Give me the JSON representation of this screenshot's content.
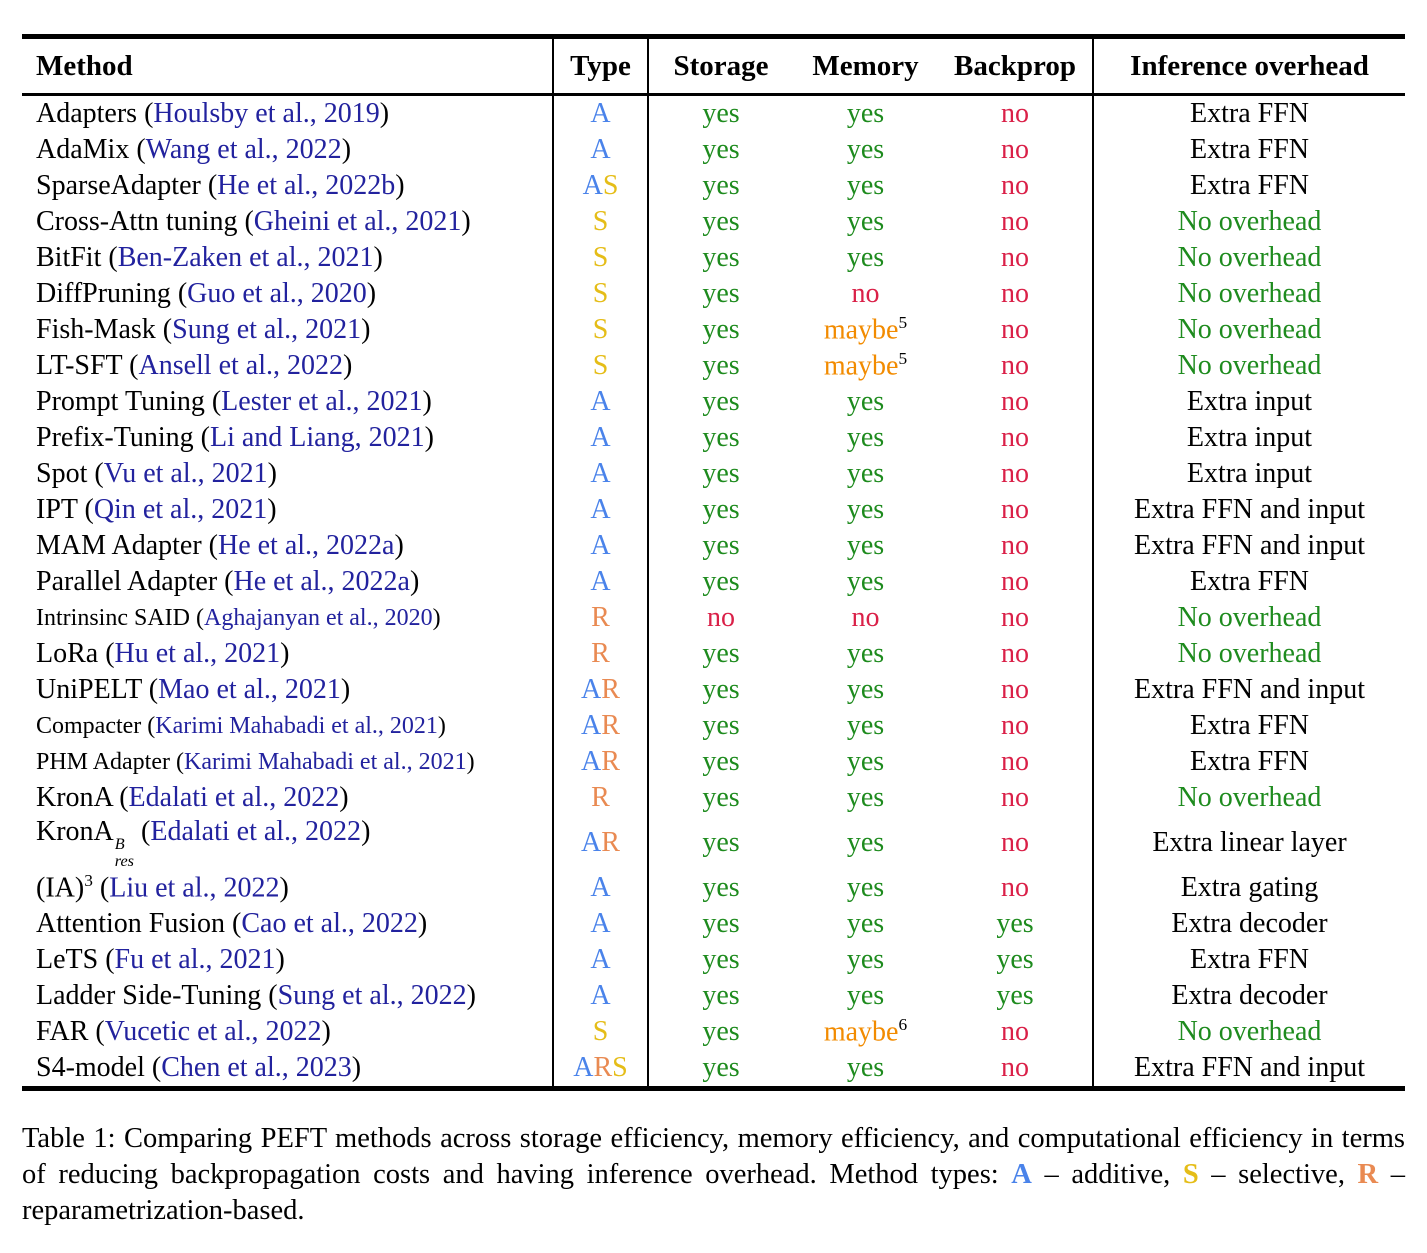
{
  "palette": {
    "citation": "#22229e",
    "type_A": "#4a83ea",
    "type_S": "#e5bd18",
    "type_R": "#e98a52",
    "yes": "#1e8b1e",
    "no": "#da2048",
    "maybe": "#f28b00",
    "overhead_green": "#1e8b1e",
    "text": "#000000"
  },
  "table": {
    "columns": [
      {
        "key": "method",
        "label": "Method"
      },
      {
        "key": "type",
        "label": "Type"
      },
      {
        "key": "storage",
        "label": "Storage"
      },
      {
        "key": "memory",
        "label": "Memory"
      },
      {
        "key": "backprop",
        "label": "Backprop"
      },
      {
        "key": "overhead",
        "label": "Inference overhead"
      }
    ],
    "rows": [
      {
        "method": [
          {
            "t": "text",
            "v": "Adapters ("
          },
          {
            "t": "cite",
            "v": "Houlsby et al., 2019"
          },
          {
            "t": "text",
            "v": ")"
          }
        ],
        "type": [
          "A"
        ],
        "storage": {
          "value": "yes"
        },
        "memory": {
          "value": "yes"
        },
        "backprop": {
          "value": "no"
        },
        "overhead": {
          "text": "Extra FFN",
          "style": "plain"
        },
        "small": false
      },
      {
        "method": [
          {
            "t": "text",
            "v": "AdaMix ("
          },
          {
            "t": "cite",
            "v": "Wang et al., 2022"
          },
          {
            "t": "text",
            "v": ")"
          }
        ],
        "type": [
          "A"
        ],
        "storage": {
          "value": "yes"
        },
        "memory": {
          "value": "yes"
        },
        "backprop": {
          "value": "no"
        },
        "overhead": {
          "text": "Extra FFN",
          "style": "plain"
        },
        "small": false
      },
      {
        "method": [
          {
            "t": "text",
            "v": "SparseAdapter ("
          },
          {
            "t": "cite",
            "v": "He et al., 2022b"
          },
          {
            "t": "text",
            "v": ")"
          }
        ],
        "type": [
          "A",
          "S"
        ],
        "storage": {
          "value": "yes"
        },
        "memory": {
          "value": "yes"
        },
        "backprop": {
          "value": "no"
        },
        "overhead": {
          "text": "Extra FFN",
          "style": "plain"
        },
        "small": false
      },
      {
        "method": [
          {
            "t": "text",
            "v": "Cross-Attn tuning ("
          },
          {
            "t": "cite",
            "v": "Gheini et al., 2021"
          },
          {
            "t": "text",
            "v": ")"
          }
        ],
        "type": [
          "S"
        ],
        "storage": {
          "value": "yes"
        },
        "memory": {
          "value": "yes"
        },
        "backprop": {
          "value": "no"
        },
        "overhead": {
          "text": "No overhead",
          "style": "green"
        },
        "small": false
      },
      {
        "method": [
          {
            "t": "text",
            "v": "BitFit ("
          },
          {
            "t": "cite",
            "v": "Ben-Zaken et al., 2021"
          },
          {
            "t": "text",
            "v": ")"
          }
        ],
        "type": [
          "S"
        ],
        "storage": {
          "value": "yes"
        },
        "memory": {
          "value": "yes"
        },
        "backprop": {
          "value": "no"
        },
        "overhead": {
          "text": "No overhead",
          "style": "green"
        },
        "small": false
      },
      {
        "method": [
          {
            "t": "text",
            "v": "DiffPruning ("
          },
          {
            "t": "cite",
            "v": "Guo et al., 2020"
          },
          {
            "t": "text",
            "v": ")"
          }
        ],
        "type": [
          "S"
        ],
        "storage": {
          "value": "yes"
        },
        "memory": {
          "value": "no"
        },
        "backprop": {
          "value": "no"
        },
        "overhead": {
          "text": "No overhead",
          "style": "green"
        },
        "small": false
      },
      {
        "method": [
          {
            "t": "text",
            "v": "Fish-Mask ("
          },
          {
            "t": "cite",
            "v": "Sung et al., 2021"
          },
          {
            "t": "text",
            "v": ")"
          }
        ],
        "type": [
          "S"
        ],
        "storage": {
          "value": "yes"
        },
        "memory": {
          "value": "maybe",
          "sup": "5"
        },
        "backprop": {
          "value": "no"
        },
        "overhead": {
          "text": "No overhead",
          "style": "green"
        },
        "small": false
      },
      {
        "method": [
          {
            "t": "text",
            "v": "LT-SFT ("
          },
          {
            "t": "cite",
            "v": "Ansell et al., 2022"
          },
          {
            "t": "text",
            "v": ")"
          }
        ],
        "type": [
          "S"
        ],
        "storage": {
          "value": "yes"
        },
        "memory": {
          "value": "maybe",
          "sup": "5"
        },
        "backprop": {
          "value": "no"
        },
        "overhead": {
          "text": "No overhead",
          "style": "green"
        },
        "small": false
      },
      {
        "method": [
          {
            "t": "text",
            "v": "Prompt Tuning ("
          },
          {
            "t": "cite",
            "v": "Lester et al., 2021"
          },
          {
            "t": "text",
            "v": ")"
          }
        ],
        "type": [
          "A"
        ],
        "storage": {
          "value": "yes"
        },
        "memory": {
          "value": "yes"
        },
        "backprop": {
          "value": "no"
        },
        "overhead": {
          "text": "Extra input",
          "style": "plain"
        },
        "small": false
      },
      {
        "method": [
          {
            "t": "text",
            "v": "Prefix-Tuning ("
          },
          {
            "t": "cite",
            "v": "Li and Liang, 2021"
          },
          {
            "t": "text",
            "v": ")"
          }
        ],
        "type": [
          "A"
        ],
        "storage": {
          "value": "yes"
        },
        "memory": {
          "value": "yes"
        },
        "backprop": {
          "value": "no"
        },
        "overhead": {
          "text": "Extra input",
          "style": "plain"
        },
        "small": false
      },
      {
        "method": [
          {
            "t": "text",
            "v": "Spot ("
          },
          {
            "t": "cite",
            "v": "Vu et al., 2021"
          },
          {
            "t": "text",
            "v": ")"
          }
        ],
        "type": [
          "A"
        ],
        "storage": {
          "value": "yes"
        },
        "memory": {
          "value": "yes"
        },
        "backprop": {
          "value": "no"
        },
        "overhead": {
          "text": "Extra input",
          "style": "plain"
        },
        "small": false
      },
      {
        "method": [
          {
            "t": "text",
            "v": "IPT ("
          },
          {
            "t": "cite",
            "v": "Qin et al., 2021"
          },
          {
            "t": "text",
            "v": ")"
          }
        ],
        "type": [
          "A"
        ],
        "storage": {
          "value": "yes"
        },
        "memory": {
          "value": "yes"
        },
        "backprop": {
          "value": "no"
        },
        "overhead": {
          "text": "Extra FFN and input",
          "style": "plain"
        },
        "small": false
      },
      {
        "method": [
          {
            "t": "text",
            "v": "MAM Adapter ("
          },
          {
            "t": "cite",
            "v": "He et al., 2022a"
          },
          {
            "t": "text",
            "v": ")"
          }
        ],
        "type": [
          "A"
        ],
        "storage": {
          "value": "yes"
        },
        "memory": {
          "value": "yes"
        },
        "backprop": {
          "value": "no"
        },
        "overhead": {
          "text": "Extra FFN and input",
          "style": "plain"
        },
        "small": false
      },
      {
        "method": [
          {
            "t": "text",
            "v": "Parallel Adapter ("
          },
          {
            "t": "cite",
            "v": "He et al., 2022a"
          },
          {
            "t": "text",
            "v": ")"
          }
        ],
        "type": [
          "A"
        ],
        "storage": {
          "value": "yes"
        },
        "memory": {
          "value": "yes"
        },
        "backprop": {
          "value": "no"
        },
        "overhead": {
          "text": "Extra FFN",
          "style": "plain"
        },
        "small": false
      },
      {
        "method": [
          {
            "t": "text",
            "v": "Intrinsinc SAID ("
          },
          {
            "t": "cite",
            "v": "Aghajanyan et al., 2020"
          },
          {
            "t": "text",
            "v": ")"
          }
        ],
        "type": [
          "R"
        ],
        "storage": {
          "value": "no"
        },
        "memory": {
          "value": "no"
        },
        "backprop": {
          "value": "no"
        },
        "overhead": {
          "text": "No overhead",
          "style": "green"
        },
        "small": true
      },
      {
        "method": [
          {
            "t": "text",
            "v": "LoRa ("
          },
          {
            "t": "cite",
            "v": "Hu et al., 2021"
          },
          {
            "t": "text",
            "v": ")"
          }
        ],
        "type": [
          "R"
        ],
        "storage": {
          "value": "yes"
        },
        "memory": {
          "value": "yes"
        },
        "backprop": {
          "value": "no"
        },
        "overhead": {
          "text": "No overhead",
          "style": "green"
        },
        "small": false
      },
      {
        "method": [
          {
            "t": "text",
            "v": "UniPELT ("
          },
          {
            "t": "cite",
            "v": "Mao et al., 2021"
          },
          {
            "t": "text",
            "v": ")"
          }
        ],
        "type": [
          "A",
          "R"
        ],
        "storage": {
          "value": "yes"
        },
        "memory": {
          "value": "yes"
        },
        "backprop": {
          "value": "no"
        },
        "overhead": {
          "text": "Extra FFN and input",
          "style": "plain"
        },
        "small": false
      },
      {
        "method": [
          {
            "t": "text",
            "v": "Compacter ("
          },
          {
            "t": "cite",
            "v": "Karimi Mahabadi et al., 2021"
          },
          {
            "t": "text",
            "v": ")"
          }
        ],
        "type": [
          "A",
          "R"
        ],
        "storage": {
          "value": "yes"
        },
        "memory": {
          "value": "yes"
        },
        "backprop": {
          "value": "no"
        },
        "overhead": {
          "text": "Extra FFN",
          "style": "plain"
        },
        "small": true
      },
      {
        "method": [
          {
            "t": "text",
            "v": "PHM Adapter ("
          },
          {
            "t": "cite",
            "v": "Karimi Mahabadi et al., 2021"
          },
          {
            "t": "text",
            "v": ")"
          }
        ],
        "type": [
          "A",
          "R"
        ],
        "storage": {
          "value": "yes"
        },
        "memory": {
          "value": "yes"
        },
        "backprop": {
          "value": "no"
        },
        "overhead": {
          "text": "Extra FFN",
          "style": "plain"
        },
        "small": true
      },
      {
        "method": [
          {
            "t": "text",
            "v": "KronA ("
          },
          {
            "t": "cite",
            "v": "Edalati et al., 2022"
          },
          {
            "t": "text",
            "v": ")"
          }
        ],
        "type": [
          "R"
        ],
        "storage": {
          "value": "yes"
        },
        "memory": {
          "value": "yes"
        },
        "backprop": {
          "value": "no"
        },
        "overhead": {
          "text": "No overhead",
          "style": "green"
        },
        "small": false
      },
      {
        "method": [
          {
            "t": "text",
            "v": "KronA"
          },
          {
            "t": "supsub",
            "sup": "B",
            "sub": "res"
          },
          {
            "t": "text",
            "v": " ("
          },
          {
            "t": "cite",
            "v": "Edalati et al., 2022"
          },
          {
            "t": "text",
            "v": ")"
          }
        ],
        "type": [
          "A",
          "R"
        ],
        "storage": {
          "value": "yes"
        },
        "memory": {
          "value": "yes"
        },
        "backprop": {
          "value": "no"
        },
        "overhead": {
          "text": "Extra linear layer",
          "style": "plain"
        },
        "small": false
      },
      {
        "method": [
          {
            "t": "text",
            "v": "(IA)"
          },
          {
            "t": "sup",
            "v": "3"
          },
          {
            "t": "text",
            "v": " ("
          },
          {
            "t": "cite",
            "v": "Liu et al., 2022"
          },
          {
            "t": "text",
            "v": ")"
          }
        ],
        "type": [
          "A"
        ],
        "storage": {
          "value": "yes"
        },
        "memory": {
          "value": "yes"
        },
        "backprop": {
          "value": "no"
        },
        "overhead": {
          "text": "Extra gating",
          "style": "plain"
        },
        "small": false
      },
      {
        "method": [
          {
            "t": "text",
            "v": "Attention Fusion ("
          },
          {
            "t": "cite",
            "v": "Cao et al., 2022"
          },
          {
            "t": "text",
            "v": ")"
          }
        ],
        "type": [
          "A"
        ],
        "storage": {
          "value": "yes"
        },
        "memory": {
          "value": "yes"
        },
        "backprop": {
          "value": "yes"
        },
        "overhead": {
          "text": "Extra decoder",
          "style": "plain"
        },
        "small": false
      },
      {
        "method": [
          {
            "t": "text",
            "v": "LeTS ("
          },
          {
            "t": "cite",
            "v": "Fu et al., 2021"
          },
          {
            "t": "text",
            "v": ")"
          }
        ],
        "type": [
          "A"
        ],
        "storage": {
          "value": "yes"
        },
        "memory": {
          "value": "yes"
        },
        "backprop": {
          "value": "yes"
        },
        "overhead": {
          "text": "Extra FFN",
          "style": "plain"
        },
        "small": false
      },
      {
        "method": [
          {
            "t": "text",
            "v": "Ladder Side-Tuning ("
          },
          {
            "t": "cite",
            "v": "Sung et al., 2022"
          },
          {
            "t": "text",
            "v": ")"
          }
        ],
        "type": [
          "A"
        ],
        "storage": {
          "value": "yes"
        },
        "memory": {
          "value": "yes"
        },
        "backprop": {
          "value": "yes"
        },
        "overhead": {
          "text": "Extra decoder",
          "style": "plain"
        },
        "small": false
      },
      {
        "method": [
          {
            "t": "text",
            "v": "FAR ("
          },
          {
            "t": "cite",
            "v": "Vucetic et al., 2022"
          },
          {
            "t": "text",
            "v": ")"
          }
        ],
        "type": [
          "S"
        ],
        "storage": {
          "value": "yes"
        },
        "memory": {
          "value": "maybe",
          "sup": "6"
        },
        "backprop": {
          "value": "no"
        },
        "overhead": {
          "text": "No overhead",
          "style": "green"
        },
        "small": false
      },
      {
        "method": [
          {
            "t": "text",
            "v": "S4-model ("
          },
          {
            "t": "cite",
            "v": "Chen et al., 2023"
          },
          {
            "t": "text",
            "v": ")"
          }
        ],
        "type": [
          "A",
          "R",
          "S"
        ],
        "storage": {
          "value": "yes"
        },
        "memory": {
          "value": "yes"
        },
        "backprop": {
          "value": "no"
        },
        "overhead": {
          "text": "Extra FFN and input",
          "style": "plain"
        },
        "small": false
      }
    ]
  },
  "caption": {
    "segments": [
      {
        "t": "text",
        "v": "Table 1: Comparing PEFT methods across storage efficiency, memory efficiency, and computational efficiency in terms of reducing backpropagation costs and having inference overhead. Method types: "
      },
      {
        "t": "type",
        "v": "A"
      },
      {
        "t": "text",
        "v": " – additive, "
      },
      {
        "t": "type",
        "v": "S"
      },
      {
        "t": "text",
        "v": " – selective, "
      },
      {
        "t": "type",
        "v": "R"
      },
      {
        "t": "text",
        "v": " – reparametrization-based."
      }
    ]
  }
}
